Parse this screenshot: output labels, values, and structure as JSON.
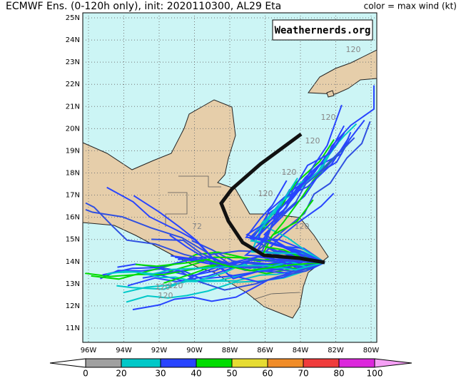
{
  "header": {
    "title": "ECMWF Ens. (0-120h only), init: 2020110300, AL29 Eta",
    "legend_label": "color = max wind (kt)"
  },
  "watermark": "Weathernerds.org",
  "map": {
    "lat_labels": [
      "25N",
      "24N",
      "23N",
      "22N",
      "21N",
      "20N",
      "19N",
      "18N",
      "17N",
      "16N",
      "15N",
      "14N",
      "13N",
      "12N",
      "11N"
    ],
    "lon_labels": [
      "96W",
      "94W",
      "92W",
      "90W",
      "88W",
      "86W",
      "84W",
      "82W",
      "80W"
    ],
    "track_labels": [
      "120",
      "120",
      "120",
      "120",
      "120",
      "120",
      "120",
      "120",
      "120",
      "72"
    ]
  },
  "colorbar": {
    "labels": [
      "0",
      "20",
      "30",
      "40",
      "50",
      "60",
      "70",
      "80",
      "100"
    ],
    "colors": [
      "#a0a0a0",
      "#00c8c8",
      "#2844ff",
      "#00dc00",
      "#e6dc32",
      "#f08c28",
      "#f03c3c",
      "#dc28dc"
    ],
    "low_color": "#ffffff",
    "high_color": "#f5a0f5"
  }
}
